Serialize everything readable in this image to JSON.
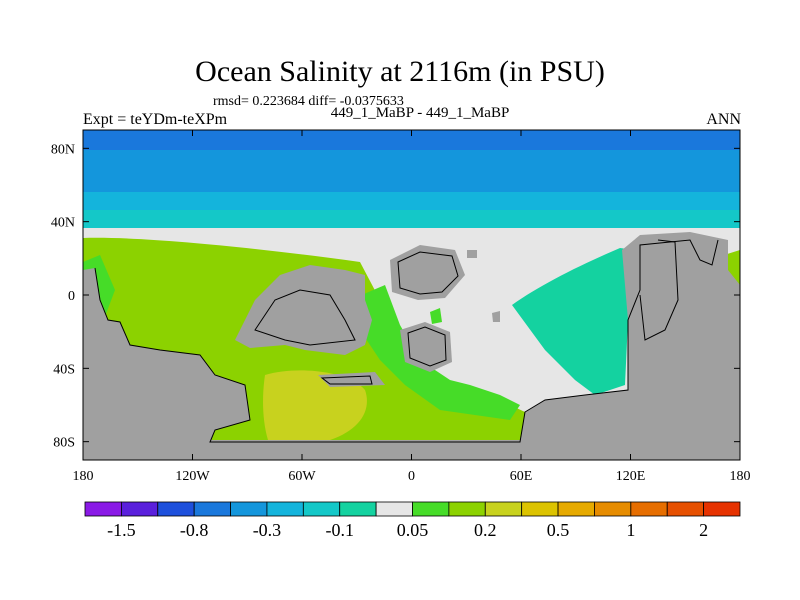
{
  "chart_data": {
    "type": "heatmap",
    "title": "Ocean Salinity at 2116m (in PSU)",
    "stats": "rmsd= 0.223684 diff= -0.0375633",
    "left_label": "Expt = teYDm-teXPm",
    "center_label": "449_1_MaBP - 449_1_MaBP",
    "right_label": "ANN",
    "x_axis": {
      "range": [
        -180,
        180
      ],
      "ticks": [
        {
          "value": -180,
          "label": "180"
        },
        {
          "value": -120,
          "label": "120W"
        },
        {
          "value": -60,
          "label": "60W"
        },
        {
          "value": 0,
          "label": "0"
        },
        {
          "value": 60,
          "label": "60E"
        },
        {
          "value": 120,
          "label": "120E"
        },
        {
          "value": 180,
          "label": "180"
        }
      ]
    },
    "y_axis": {
      "range": [
        -90,
        90
      ],
      "ticks": [
        {
          "value": 80,
          "label": "80N"
        },
        {
          "value": 40,
          "label": "40N"
        },
        {
          "value": 0,
          "label": "0"
        },
        {
          "value": -40,
          "label": "40S"
        },
        {
          "value": -80,
          "label": "80S"
        }
      ]
    },
    "colorbar": {
      "colors": [
        "#8a1ae6",
        "#5a20dc",
        "#1e50dc",
        "#1a78dc",
        "#1496dc",
        "#14b4dc",
        "#14c8c8",
        "#14d2a0",
        "#e6e6e6",
        "#46dc28",
        "#8cd200",
        "#c8d21e",
        "#dcc300",
        "#e6aa00",
        "#e68c00",
        "#e66e00",
        "#e65000",
        "#e63200"
      ],
      "labels": [
        {
          "after_box": 1,
          "text": "-1.5"
        },
        {
          "after_box": 3,
          "text": "-0.8"
        },
        {
          "after_box": 5,
          "text": "-0.3"
        },
        {
          "after_box": 7,
          "text": "-0.1"
        },
        {
          "after_box": 9,
          "text": "0.05"
        },
        {
          "after_box": 11,
          "text": "0.2"
        },
        {
          "after_box": 13,
          "text": "0.5"
        },
        {
          "after_box": 15,
          "text": "1"
        },
        {
          "after_box": 17,
          "text": "2"
        }
      ]
    },
    "region_values": {
      "arctic_band_80N_to_90N": -0.8,
      "north_band_45N_to_80N": -0.3,
      "north_band_35N_to_45N": -0.1,
      "subtropical_north_35N": 0.05,
      "pacific_basin": 0.2,
      "southern_pacific_pool": 0.3,
      "indian_basin": -0.1,
      "central_tethys": 0.05,
      "land": "mask"
    },
    "colors": {
      "land": "#a0a0a0",
      "neutral": "#e6e6e6"
    }
  }
}
